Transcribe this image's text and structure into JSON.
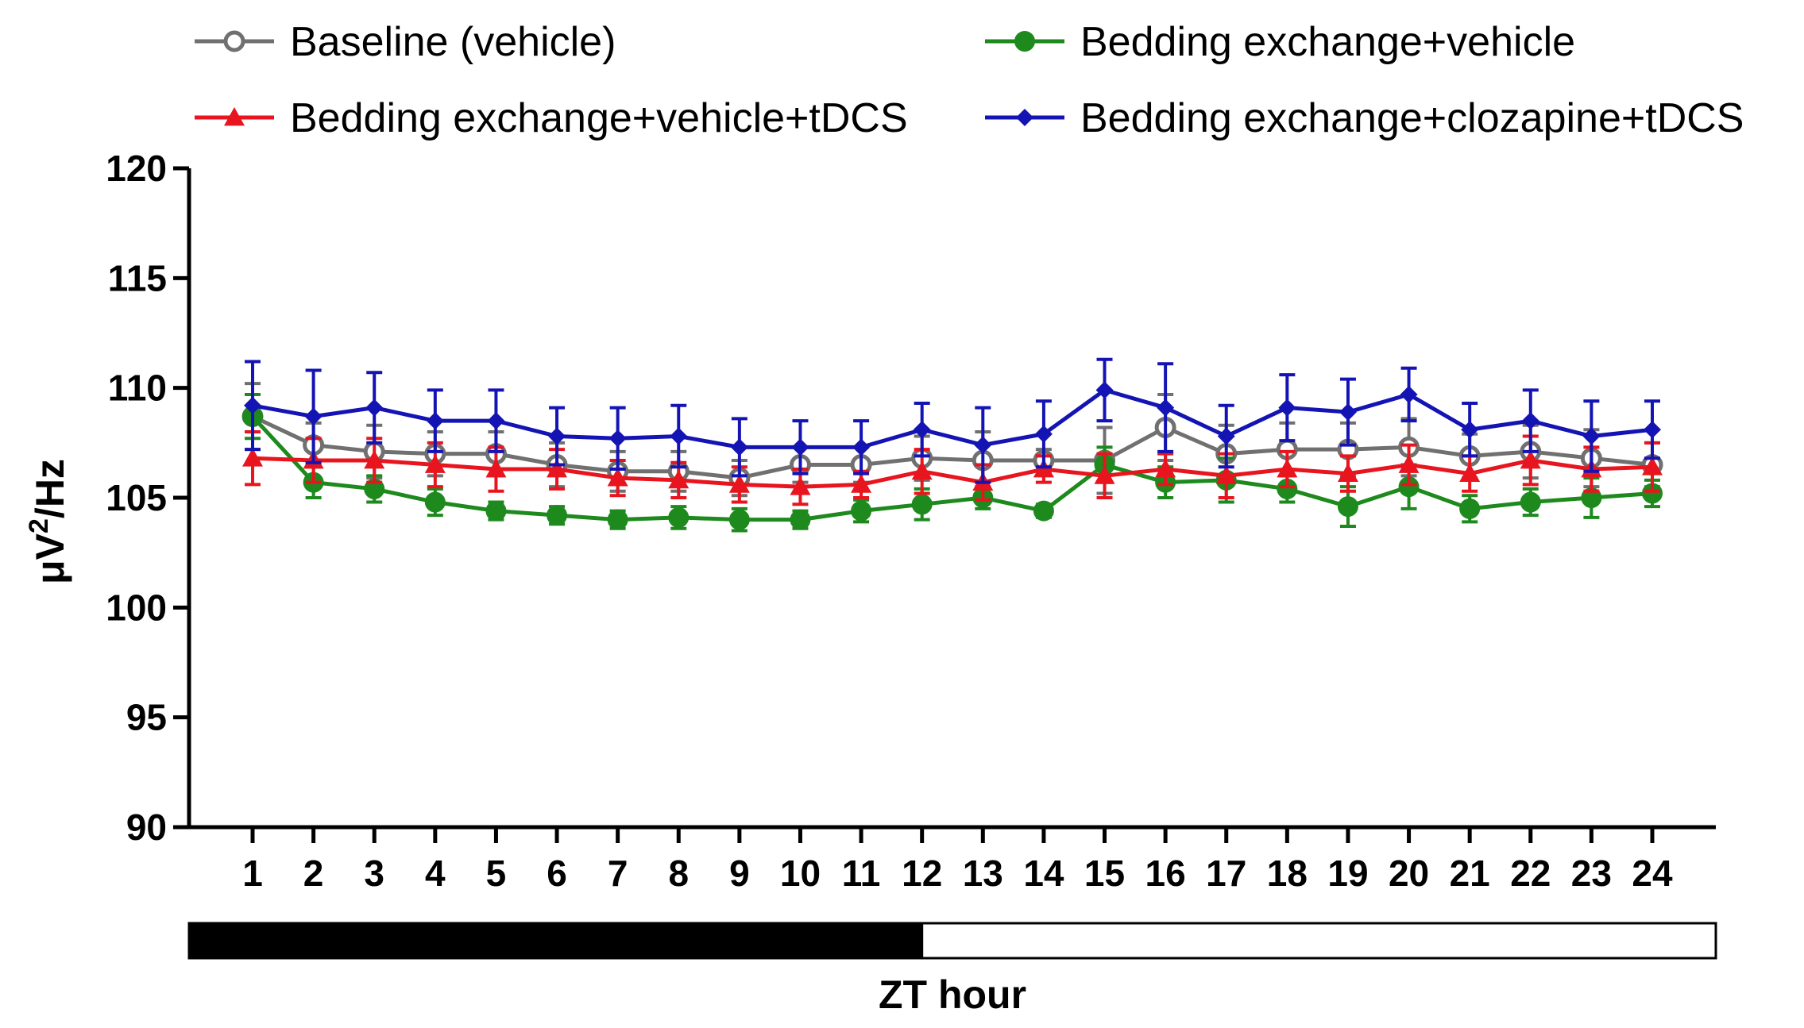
{
  "chart_data": {
    "type": "line",
    "title": "",
    "xlabel": "ZT hour",
    "ylabel": "μV²/Hz",
    "ylabel_parts": {
      "base": "μV",
      "sup": "2",
      "rest": "/Hz"
    },
    "ylim": [
      90,
      120
    ],
    "yticks": [
      90,
      95,
      100,
      105,
      110,
      115,
      120
    ],
    "x": [
      1,
      2,
      3,
      4,
      5,
      6,
      7,
      8,
      9,
      10,
      11,
      12,
      13,
      14,
      15,
      16,
      17,
      18,
      19,
      20,
      21,
      22,
      23,
      24
    ],
    "xlim": [
      0,
      24
    ],
    "light_dark_bar": {
      "dark_hours": [
        0,
        12
      ],
      "light_hours": [
        12,
        24
      ]
    },
    "legend_position": "top",
    "series": [
      {
        "name": "Baseline (vehicle)",
        "color": "#707070",
        "marker": "open-circle",
        "values": [
          108.7,
          107.4,
          107.1,
          107.0,
          107.0,
          106.5,
          106.2,
          106.2,
          105.9,
          106.5,
          106.5,
          106.8,
          106.7,
          106.7,
          106.7,
          108.2,
          107.0,
          107.2,
          107.2,
          107.3,
          106.9,
          107.1,
          106.8,
          106.5
        ],
        "errors": [
          1.5,
          1.0,
          1.2,
          1.0,
          1.0,
          1.0,
          0.9,
          0.9,
          0.8,
          0.8,
          0.8,
          1.0,
          1.3,
          0.5,
          1.5,
          1.5,
          1.3,
          1.2,
          1.2,
          1.3,
          1.0,
          1.2,
          1.3,
          1.0
        ]
      },
      {
        "name": "Bedding exchange+vehicle",
        "color": "#1e8a1e",
        "marker": "filled-circle",
        "values": [
          108.7,
          105.7,
          105.4,
          104.8,
          104.4,
          104.2,
          104.0,
          104.1,
          104.0,
          104.0,
          104.4,
          104.7,
          105.0,
          104.4,
          106.5,
          105.7,
          105.8,
          105.4,
          104.6,
          105.5,
          104.5,
          104.8,
          105.0,
          105.2
        ],
        "errors": [
          1.0,
          0.7,
          0.6,
          0.6,
          0.4,
          0.4,
          0.4,
          0.5,
          0.5,
          0.4,
          0.5,
          0.7,
          0.5,
          0.3,
          0.8,
          0.7,
          1.0,
          0.6,
          0.9,
          1.0,
          0.6,
          0.6,
          0.9,
          0.6
        ]
      },
      {
        "name": "Bedding exchange+vehicle+tDCS",
        "color": "#e8141e",
        "marker": "triangle",
        "values": [
          106.8,
          106.7,
          106.7,
          106.5,
          106.3,
          106.3,
          105.9,
          105.8,
          105.6,
          105.5,
          105.6,
          106.2,
          105.7,
          106.3,
          106.0,
          106.3,
          106.0,
          106.3,
          106.1,
          106.5,
          106.1,
          106.7,
          106.3,
          106.4
        ],
        "errors": [
          1.2,
          1.0,
          1.0,
          1.0,
          1.0,
          0.9,
          0.8,
          0.8,
          0.8,
          0.8,
          0.6,
          1.0,
          0.8,
          0.6,
          1.0,
          0.7,
          1.0,
          0.8,
          0.8,
          0.9,
          0.8,
          1.1,
          1.0,
          1.1
        ]
      },
      {
        "name": "Bedding exchange+clozapine+tDCS",
        "color": "#1414b4",
        "marker": "diamond",
        "values": [
          109.2,
          108.7,
          109.1,
          108.5,
          108.5,
          107.8,
          107.7,
          107.8,
          107.3,
          107.3,
          107.3,
          108.1,
          107.4,
          107.9,
          109.9,
          109.1,
          107.8,
          109.1,
          108.9,
          109.7,
          108.1,
          108.5,
          107.8,
          108.1
        ],
        "errors": [
          2.0,
          2.1,
          1.6,
          1.4,
          1.4,
          1.3,
          1.4,
          1.4,
          1.3,
          1.2,
          1.2,
          1.2,
          1.7,
          1.5,
          1.4,
          2.0,
          1.4,
          1.5,
          1.5,
          1.2,
          1.2,
          1.4,
          1.6,
          1.3
        ]
      }
    ]
  }
}
